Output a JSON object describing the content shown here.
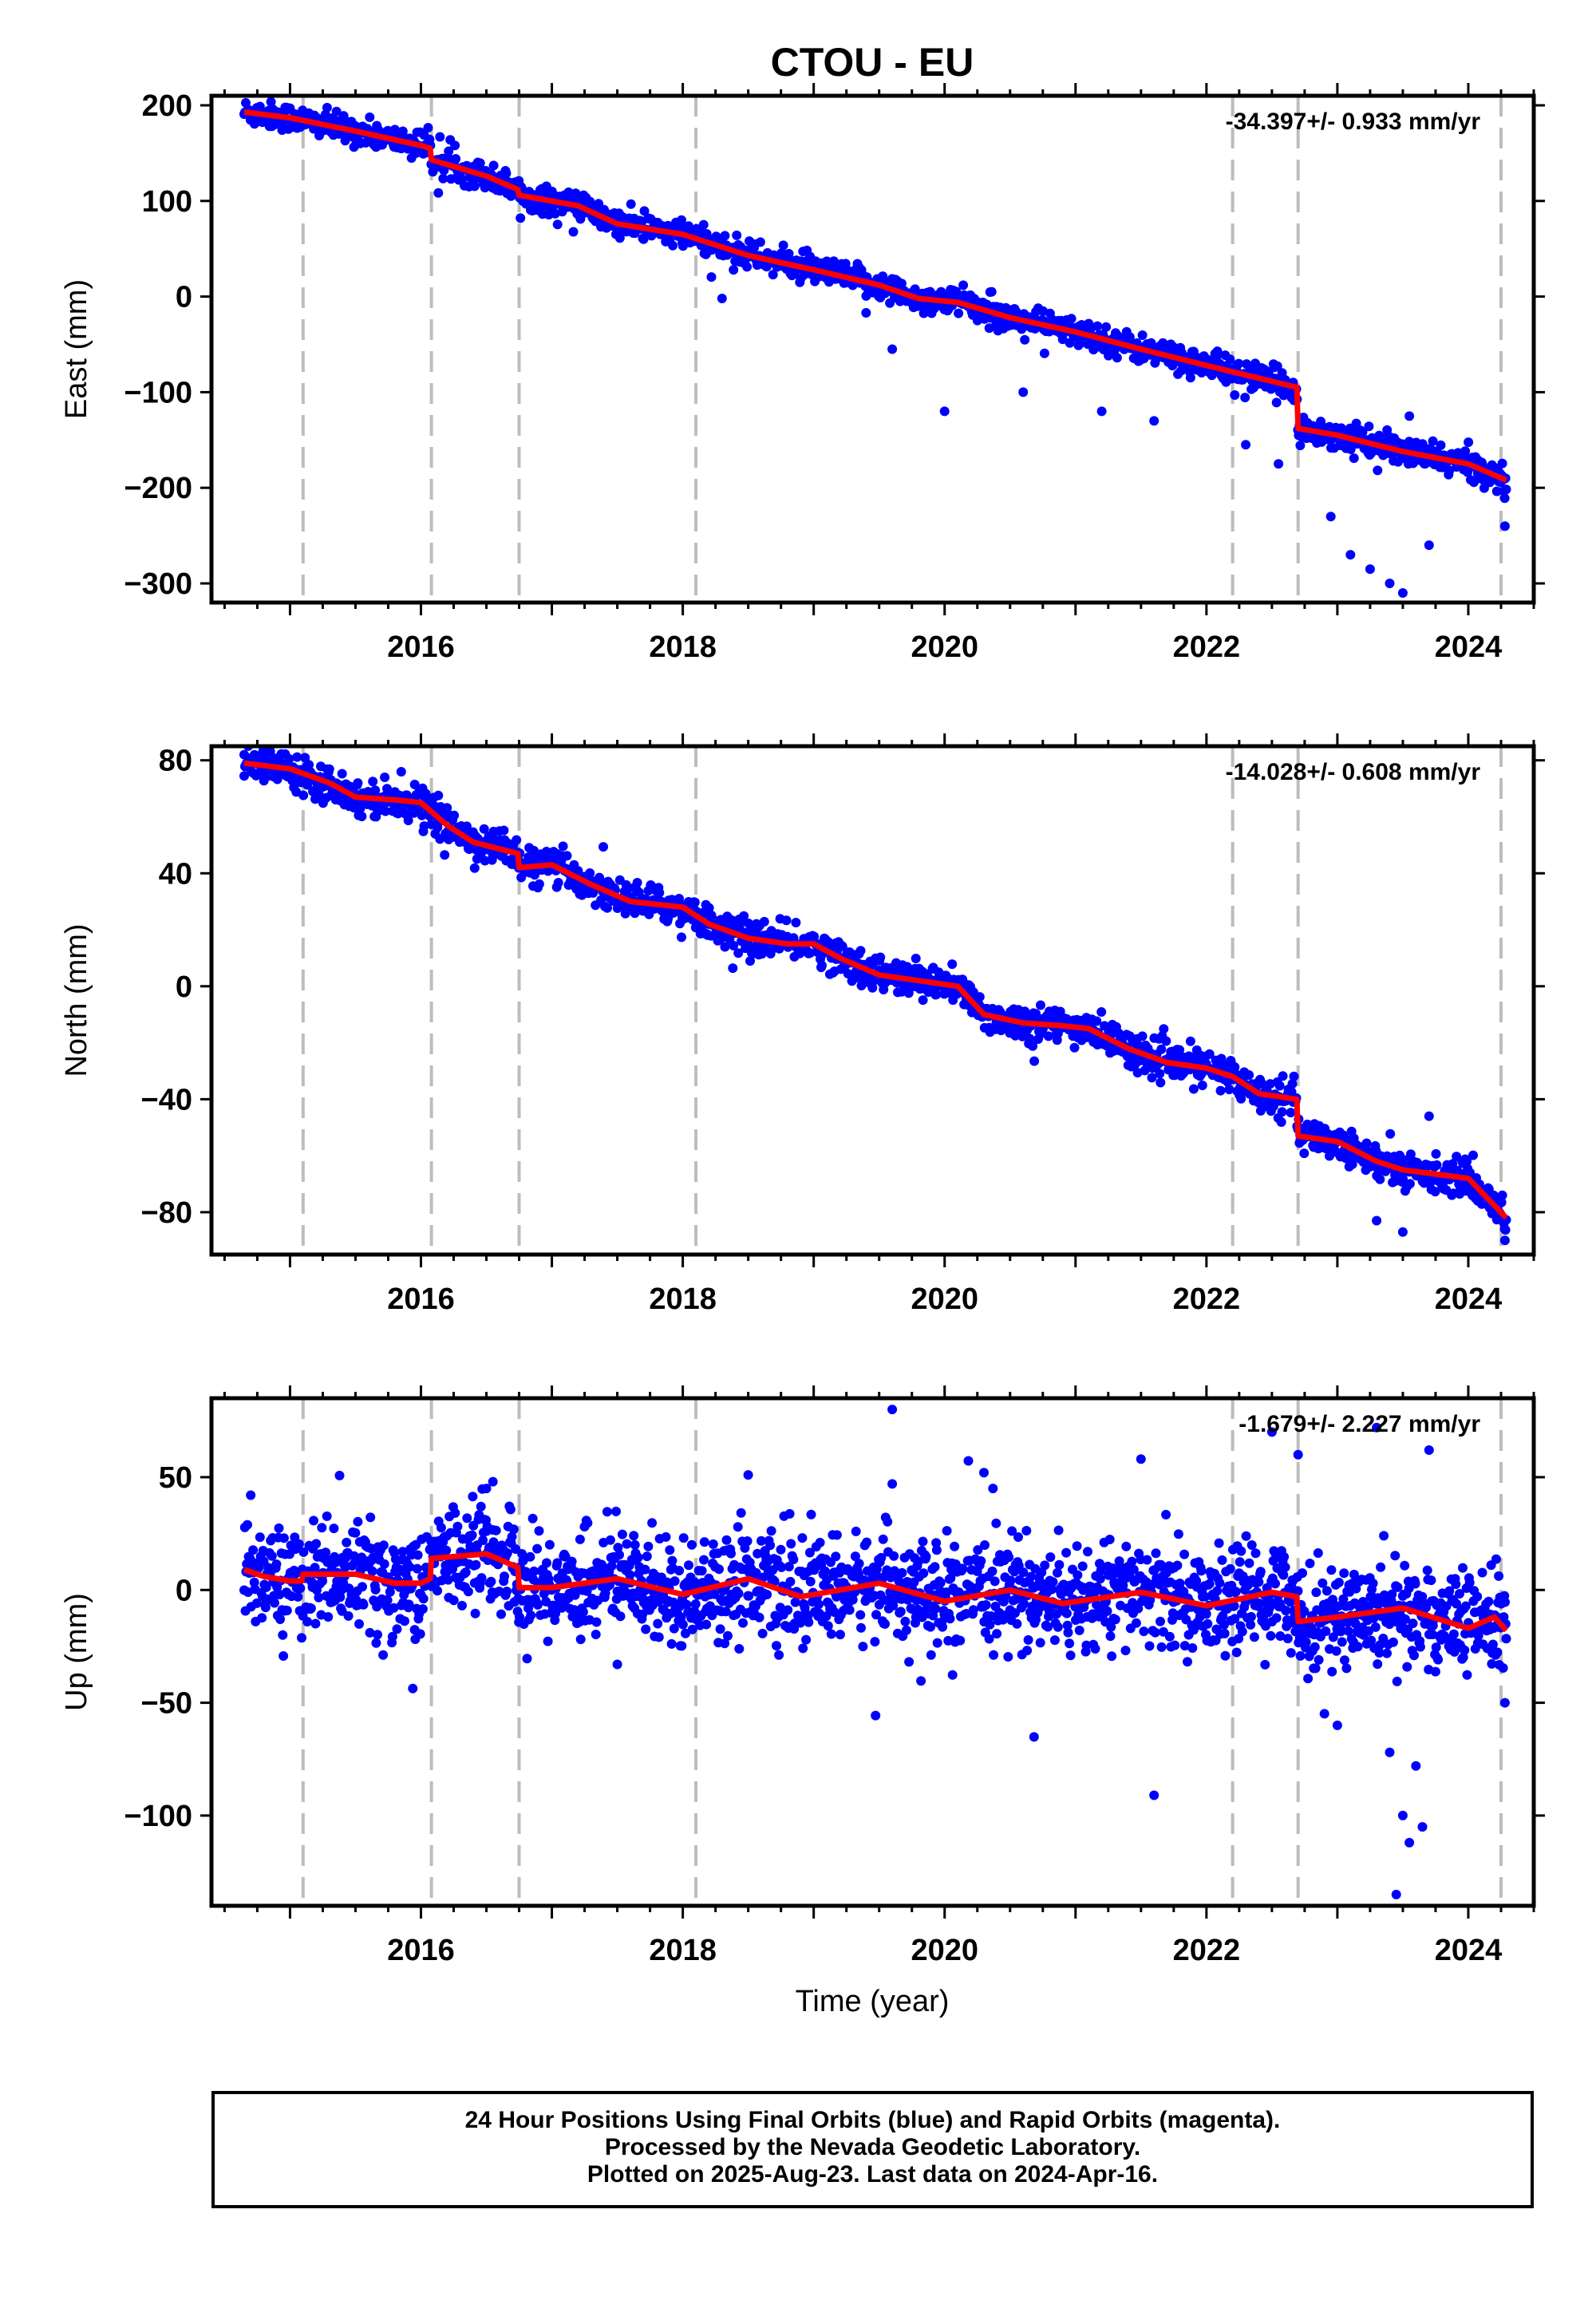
{
  "title": "CTOU - EU",
  "xlabel": "Time (year)",
  "colors": {
    "data": "#0000ff",
    "model": "#ff0000",
    "event_line": "#bdbdbd"
  },
  "footer": {
    "line1": "24 Hour Positions Using Final Orbits (blue) and Rapid Orbits (magenta).",
    "line2": "Processed by the Nevada Geodetic Laboratory.",
    "line3": "Plotted on 2025-Aug-23. Last data on 2024-Apr-16."
  },
  "chart_data": [
    {
      "type": "scatter",
      "name": "east",
      "ylabel": "East (mm)",
      "rate_label": "-34.397+/- 0.933 mm/yr",
      "xlim": [
        2014.4,
        2024.5
      ],
      "ylim": [
        -320,
        210
      ],
      "yticks": [
        200,
        100,
        0,
        -100,
        -200,
        -300
      ],
      "xticks": [
        2016,
        2018,
        2020,
        2022,
        2024
      ],
      "grid": false,
      "event_lines": [
        2015.1,
        2016.08,
        2016.75,
        2018.1,
        2022.2,
        2022.7,
        2024.25
      ],
      "model": [
        [
          2014.65,
          193
        ],
        [
          2015.0,
          187
        ],
        [
          2015.5,
          173
        ],
        [
          2016.0,
          158
        ],
        [
          2016.07,
          155
        ],
        [
          2016.08,
          143
        ],
        [
          2016.5,
          126
        ],
        [
          2016.74,
          112
        ],
        [
          2016.75,
          106
        ],
        [
          2017.2,
          95
        ],
        [
          2017.5,
          76
        ],
        [
          2018.0,
          65
        ],
        [
          2018.5,
          43
        ],
        [
          2019.0,
          28
        ],
        [
          2019.5,
          12
        ],
        [
          2019.8,
          -2
        ],
        [
          2020.1,
          -6
        ],
        [
          2020.5,
          -22
        ],
        [
          2021.0,
          -37
        ],
        [
          2021.5,
          -55
        ],
        [
          2022.0,
          -72
        ],
        [
          2022.69,
          -95
        ],
        [
          2022.7,
          -138
        ],
        [
          2023.0,
          -145
        ],
        [
          2023.5,
          -162
        ],
        [
          2024.0,
          -175
        ],
        [
          2024.29,
          -192
        ]
      ],
      "outliers": [
        [
          2018.3,
          -2
        ],
        [
          2019.4,
          -17
        ],
        [
          2019.6,
          -55
        ],
        [
          2020.0,
          -120
        ],
        [
          2020.6,
          -100
        ],
        [
          2021.2,
          -120
        ],
        [
          2021.6,
          -130
        ],
        [
          2022.3,
          -155
        ],
        [
          2022.55,
          -175
        ],
        [
          2022.95,
          -230
        ],
        [
          2023.1,
          -270
        ],
        [
          2023.25,
          -285
        ],
        [
          2023.4,
          -300
        ],
        [
          2023.5,
          -310
        ],
        [
          2023.7,
          -260
        ],
        [
          2023.55,
          -125
        ],
        [
          2024.28,
          -240
        ]
      ],
      "series": [
        {
          "name": "",
          "noise": 7,
          "count": 1600
        }
      ]
    },
    {
      "type": "scatter",
      "name": "north",
      "ylabel": "North (mm)",
      "rate_label": "-14.028+/- 0.608 mm/yr",
      "xlim": [
        2014.4,
        2024.5
      ],
      "ylim": [
        -95,
        85
      ],
      "yticks": [
        80,
        40,
        0,
        -40,
        -80
      ],
      "xticks": [
        2016,
        2018,
        2020,
        2022,
        2024
      ],
      "grid": false,
      "event_lines": [
        2015.1,
        2016.08,
        2016.75,
        2018.1,
        2022.2,
        2022.7,
        2024.25
      ],
      "model": [
        [
          2014.65,
          79
        ],
        [
          2015.0,
          77
        ],
        [
          2015.3,
          72
        ],
        [
          2015.5,
          67
        ],
        [
          2015.8,
          66
        ],
        [
          2016.0,
          65
        ],
        [
          2016.2,
          57
        ],
        [
          2016.4,
          51
        ],
        [
          2016.74,
          47
        ],
        [
          2016.75,
          42
        ],
        [
          2017.0,
          43
        ],
        [
          2017.3,
          36
        ],
        [
          2017.6,
          30
        ],
        [
          2018.0,
          28
        ],
        [
          2018.2,
          22
        ],
        [
          2018.5,
          17
        ],
        [
          2018.8,
          15
        ],
        [
          2019.0,
          15
        ],
        [
          2019.2,
          10
        ],
        [
          2019.5,
          4
        ],
        [
          2019.8,
          2
        ],
        [
          2020.1,
          0
        ],
        [
          2020.3,
          -10
        ],
        [
          2020.6,
          -13
        ],
        [
          2020.9,
          -14
        ],
        [
          2021.1,
          -15
        ],
        [
          2021.4,
          -22
        ],
        [
          2021.7,
          -27
        ],
        [
          2022.0,
          -29
        ],
        [
          2022.2,
          -32
        ],
        [
          2022.4,
          -38
        ],
        [
          2022.69,
          -40
        ],
        [
          2022.7,
          -53
        ],
        [
          2023.0,
          -55
        ],
        [
          2023.3,
          -62
        ],
        [
          2023.5,
          -65
        ],
        [
          2024.0,
          -68
        ],
        [
          2024.29,
          -82
        ]
      ],
      "outliers": [
        [
          2014.65,
          82
        ],
        [
          2016.6,
          55
        ],
        [
          2023.3,
          -83
        ],
        [
          2023.5,
          -87
        ],
        [
          2023.7,
          -46
        ],
        [
          2024.28,
          -90
        ]
      ],
      "series": [
        {
          "name": "",
          "noise": 3,
          "count": 1600
        }
      ]
    },
    {
      "type": "scatter",
      "name": "up",
      "ylabel": "Up (mm)",
      "rate_label": "-1.679+/- 2.227 mm/yr",
      "xlim": [
        2014.4,
        2024.5
      ],
      "ylim": [
        -140,
        85
      ],
      "yticks": [
        50,
        0,
        -50,
        -100
      ],
      "xticks": [
        2016,
        2018,
        2020,
        2022,
        2024
      ],
      "grid": false,
      "event_lines": [
        2015.1,
        2016.08,
        2016.75,
        2018.1,
        2022.2,
        2022.7,
        2024.25
      ],
      "model": [
        [
          2014.65,
          9
        ],
        [
          2014.8,
          6
        ],
        [
          2015.0,
          4
        ],
        [
          2015.09,
          4
        ],
        [
          2015.1,
          7
        ],
        [
          2015.5,
          7
        ],
        [
          2015.8,
          3
        ],
        [
          2016.0,
          3
        ],
        [
          2016.07,
          5
        ],
        [
          2016.08,
          14
        ],
        [
          2016.5,
          16
        ],
        [
          2016.74,
          10
        ],
        [
          2016.75,
          1
        ],
        [
          2017.0,
          1
        ],
        [
          2017.5,
          5
        ],
        [
          2018.0,
          -2
        ],
        [
          2018.5,
          5
        ],
        [
          2018.9,
          -3
        ],
        [
          2019.5,
          3
        ],
        [
          2020.0,
          -5
        ],
        [
          2020.5,
          0
        ],
        [
          2020.9,
          -6
        ],
        [
          2021.5,
          -1
        ],
        [
          2022.0,
          -7
        ],
        [
          2022.5,
          -1
        ],
        [
          2022.69,
          -3
        ],
        [
          2022.7,
          -14
        ],
        [
          2023.0,
          -12
        ],
        [
          2023.5,
          -8
        ],
        [
          2024.0,
          -17
        ],
        [
          2024.2,
          -12
        ],
        [
          2024.29,
          -18
        ]
      ],
      "outliers": [
        [
          2014.7,
          42
        ],
        [
          2016.5,
          45
        ],
        [
          2016.55,
          48
        ],
        [
          2017.5,
          -33
        ],
        [
          2018.5,
          51
        ],
        [
          2019.6,
          80
        ],
        [
          2019.6,
          47
        ],
        [
          2020.3,
          52
        ],
        [
          2021.5,
          58
        ],
        [
          2021.6,
          -91
        ],
        [
          2022.5,
          70
        ],
        [
          2022.7,
          60
        ],
        [
          2023.0,
          -60
        ],
        [
          2023.3,
          72
        ],
        [
          2023.4,
          -72
        ],
        [
          2023.5,
          -100
        ],
        [
          2023.55,
          -112
        ],
        [
          2023.6,
          -78
        ],
        [
          2023.45,
          -135
        ],
        [
          2023.7,
          62
        ],
        [
          2023.65,
          -105
        ],
        [
          2024.28,
          -50
        ]
      ],
      "series": [
        {
          "name": "",
          "noise": 11,
          "count": 2000
        }
      ]
    }
  ]
}
